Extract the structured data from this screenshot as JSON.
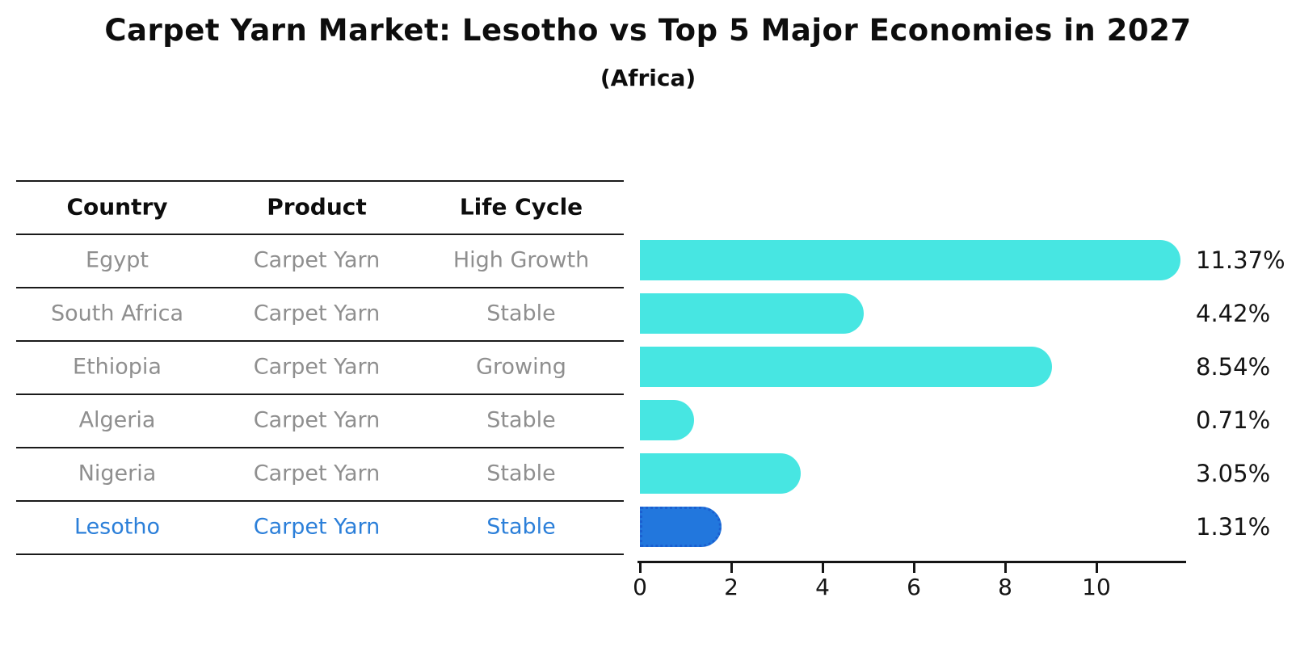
{
  "title": "Carpet Yarn Market: Lesotho vs Top 5 Major Economies in 2027",
  "subtitle": "(Africa)",
  "table": {
    "headers": [
      "Country",
      "Product",
      "Life Cycle"
    ],
    "rows": [
      {
        "country": "Egypt",
        "product": "Carpet Yarn",
        "life_cycle": "High Growth"
      },
      {
        "country": "South Africa",
        "product": "Carpet Yarn",
        "life_cycle": "Stable"
      },
      {
        "country": "Ethiopia",
        "product": "Carpet Yarn",
        "life_cycle": "Growing"
      },
      {
        "country": "Algeria",
        "product": "Carpet Yarn",
        "life_cycle": "Stable"
      },
      {
        "country": "Nigeria",
        "product": "Carpet Yarn",
        "life_cycle": "Stable"
      },
      {
        "country": "Lesotho",
        "product": "Carpet Yarn",
        "life_cycle": "Stable"
      }
    ],
    "highlight_row": 5
  },
  "chart_data": {
    "type": "bar",
    "orientation": "horizontal",
    "title": "Carpet Yarn Market: Lesotho vs Top 5 Major Economies in 2027",
    "subtitle": "(Africa)",
    "categories": [
      "Egypt",
      "South Africa",
      "Ethiopia",
      "Algeria",
      "Nigeria",
      "Lesotho"
    ],
    "values": [
      11.37,
      4.42,
      8.54,
      0.71,
      3.05,
      1.31
    ],
    "value_labels": [
      "11.37%",
      "4.42%",
      "8.54%",
      "0.71%",
      "3.05%",
      "1.31%"
    ],
    "x_ticks": [
      0,
      2,
      4,
      6,
      8,
      10
    ],
    "xlim": [
      0,
      11.96
    ],
    "grid": false,
    "legend": "none",
    "highlight_index": 5
  },
  "colors": {
    "bar_cyan": "#47e6e2",
    "bar_highlight_blue": "#2277dd",
    "highlight_text_blue": "#2b7fd9",
    "muted_row_text": "#8f8f8f",
    "axis_black": "#151515",
    "background": "#ffffff"
  }
}
